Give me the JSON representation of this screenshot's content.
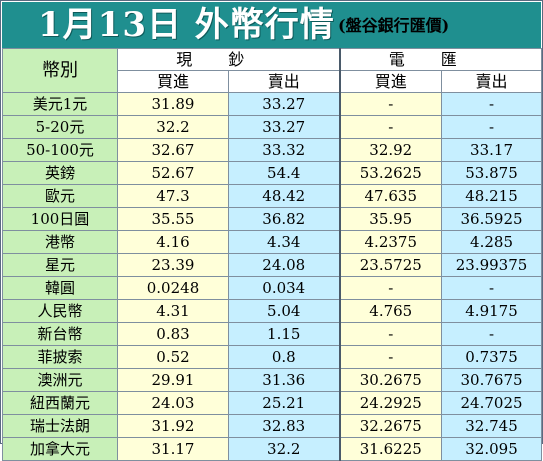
{
  "header": {
    "title": "1月13日 外幣行情",
    "source": "(盤谷銀行匯價)"
  },
  "table": {
    "corner_label": "幣別",
    "groups": [
      "現鈔",
      "電匯"
    ],
    "columns": [
      "買進",
      "賣出",
      "買進",
      "賣出"
    ],
    "rows": [
      {
        "currency": "美元1元",
        "cash_buy": "31.89",
        "cash_sell": "33.27",
        "tt_buy": "-",
        "tt_sell": "-"
      },
      {
        "currency": "5-20元",
        "cash_buy": "32.2",
        "cash_sell": "33.27",
        "tt_buy": "-",
        "tt_sell": "-"
      },
      {
        "currency": "50-100元",
        "cash_buy": "32.67",
        "cash_sell": "33.32",
        "tt_buy": "32.92",
        "tt_sell": "33.17"
      },
      {
        "currency": "英鎊",
        "cash_buy": "52.67",
        "cash_sell": "54.4",
        "tt_buy": "53.2625",
        "tt_sell": "53.875"
      },
      {
        "currency": "歐元",
        "cash_buy": "47.3",
        "cash_sell": "48.42",
        "tt_buy": "47.635",
        "tt_sell": "48.215"
      },
      {
        "currency": "100日圓",
        "cash_buy": "35.55",
        "cash_sell": "36.82",
        "tt_buy": "35.95",
        "tt_sell": "36.5925"
      },
      {
        "currency": "港幣",
        "cash_buy": "4.16",
        "cash_sell": "4.34",
        "tt_buy": "4.2375",
        "tt_sell": "4.285"
      },
      {
        "currency": "星元",
        "cash_buy": "23.39",
        "cash_sell": "24.08",
        "tt_buy": "23.5725",
        "tt_sell": "23.99375"
      },
      {
        "currency": "韓圓",
        "cash_buy": "0.0248",
        "cash_sell": "0.034",
        "tt_buy": "-",
        "tt_sell": "-"
      },
      {
        "currency": "人民幣",
        "cash_buy": "4.31",
        "cash_sell": "5.04",
        "tt_buy": "4.765",
        "tt_sell": "4.9175"
      },
      {
        "currency": "新台幣",
        "cash_buy": "0.83",
        "cash_sell": "1.15",
        "tt_buy": "-",
        "tt_sell": "-"
      },
      {
        "currency": "菲披索",
        "cash_buy": "0.52",
        "cash_sell": "0.8",
        "tt_buy": "-",
        "tt_sell": "0.7375"
      },
      {
        "currency": "澳洲元",
        "cash_buy": "29.91",
        "cash_sell": "31.36",
        "tt_buy": "30.2675",
        "tt_sell": "30.7675"
      },
      {
        "currency": "紐西蘭元",
        "cash_buy": "24.03",
        "cash_sell": "25.21",
        "tt_buy": "24.2925",
        "tt_sell": "24.7025"
      },
      {
        "currency": "瑞士法朗",
        "cash_buy": "31.92",
        "cash_sell": "32.83",
        "tt_buy": "32.2675",
        "tt_sell": "32.745"
      },
      {
        "currency": "加拿大元",
        "cash_buy": "31.17",
        "cash_sell": "32.2",
        "tt_buy": "31.6225",
        "tt_sell": "32.095"
      }
    ]
  },
  "colors": {
    "title_bar": "#1f8f8f",
    "name_column": "#c8f0b8",
    "buy_column": "#ffffd9",
    "sell_column": "#c6efff"
  }
}
